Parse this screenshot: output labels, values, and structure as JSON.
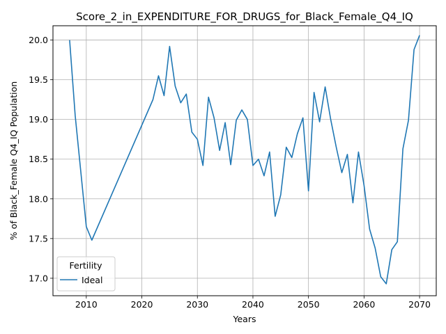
{
  "chart_data": {
    "type": "line",
    "title": "Score_2_in_EXPENDITURE_FOR_DRUGS_for_Black_Female_Q4_IQ",
    "xlabel": "Years",
    "ylabel": "% of Black_Female Q4_IQ Population",
    "xlim": [
      2004,
      2073
    ],
    "ylim": [
      16.78,
      20.18
    ],
    "xticks": [
      2010,
      2020,
      2030,
      2040,
      2050,
      2060,
      2070
    ],
    "yticks": [
      17.0,
      17.5,
      18.0,
      18.5,
      19.0,
      19.5,
      20.0
    ],
    "grid": true,
    "legend": {
      "title": "Fertility",
      "position": "lower-left"
    },
    "series": [
      {
        "name": "Ideal",
        "color": "#1f77b4",
        "x": [
          2007,
          2008,
          2009,
          2010,
          2011,
          2022,
          2023,
          2024,
          2025,
          2026,
          2027,
          2028,
          2029,
          2030,
          2031,
          2032,
          2033,
          2034,
          2035,
          2036,
          2037,
          2038,
          2039,
          2040,
          2041,
          2042,
          2043,
          2044,
          2045,
          2046,
          2047,
          2048,
          2049,
          2050,
          2051,
          2052,
          2053,
          2054,
          2055,
          2056,
          2057,
          2058,
          2059,
          2060,
          2061,
          2062,
          2063,
          2064,
          2065,
          2066,
          2067,
          2068,
          2069,
          2070
        ],
        "values": [
          20.0,
          19.05,
          18.35,
          17.65,
          17.48,
          19.25,
          19.55,
          19.3,
          19.92,
          19.42,
          19.21,
          19.32,
          18.84,
          18.75,
          18.42,
          19.28,
          19.02,
          18.61,
          18.96,
          18.43,
          18.99,
          19.12,
          19.0,
          18.42,
          18.5,
          18.29,
          18.59,
          17.78,
          18.05,
          18.65,
          18.52,
          18.82,
          19.02,
          18.1,
          19.34,
          18.97,
          19.41,
          19.0,
          18.65,
          18.33,
          18.56,
          17.95,
          18.59,
          18.17,
          17.62,
          17.38,
          17.02,
          16.93,
          17.36,
          17.46,
          18.63,
          18.99,
          19.88,
          20.06
        ]
      }
    ]
  }
}
